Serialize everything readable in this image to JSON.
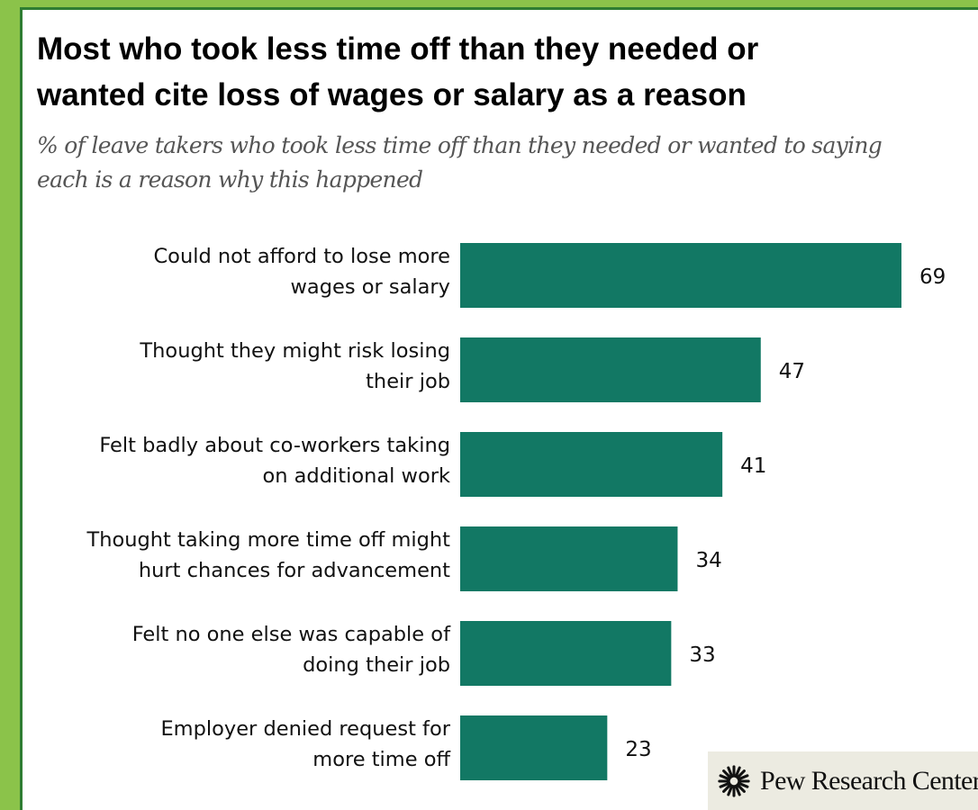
{
  "title_lines": [
    "Most who took less time off than they needed or",
    "wanted cite loss of wages or salary as a reason"
  ],
  "subtitle_lines": [
    "% of leave takers who took less time off than they needed or wanted to saying",
    "each is a reason why this happened"
  ],
  "logo": {
    "text": "Pew Research Center"
  },
  "colors": {
    "bar": "#127864",
    "background": "#ffffff",
    "frame": "#8bc34a",
    "frame_border": "#2e7d32"
  },
  "chart_data": {
    "type": "bar",
    "orientation": "horizontal",
    "title": "Most who took less time off than they needed or wanted cite loss of wages or salary as a reason",
    "subtitle": "% of leave takers who took less time off than they needed or wanted to saying each is a reason why this happened",
    "categories": [
      [
        "Could not afford to lose more",
        "wages or salary"
      ],
      [
        "Thought they might risk losing",
        "their job"
      ],
      [
        "Felt badly about co-workers taking",
        "on additional work"
      ],
      [
        "Thought taking more time off might",
        "hurt chances for advancement"
      ],
      [
        "Felt no one else was capable of",
        "doing their job"
      ],
      [
        "Employer denied request for",
        "more time off"
      ]
    ],
    "values": [
      69,
      47,
      41,
      34,
      33,
      23
    ],
    "xlim": [
      0,
      69
    ],
    "grid": false,
    "legend": "none"
  }
}
